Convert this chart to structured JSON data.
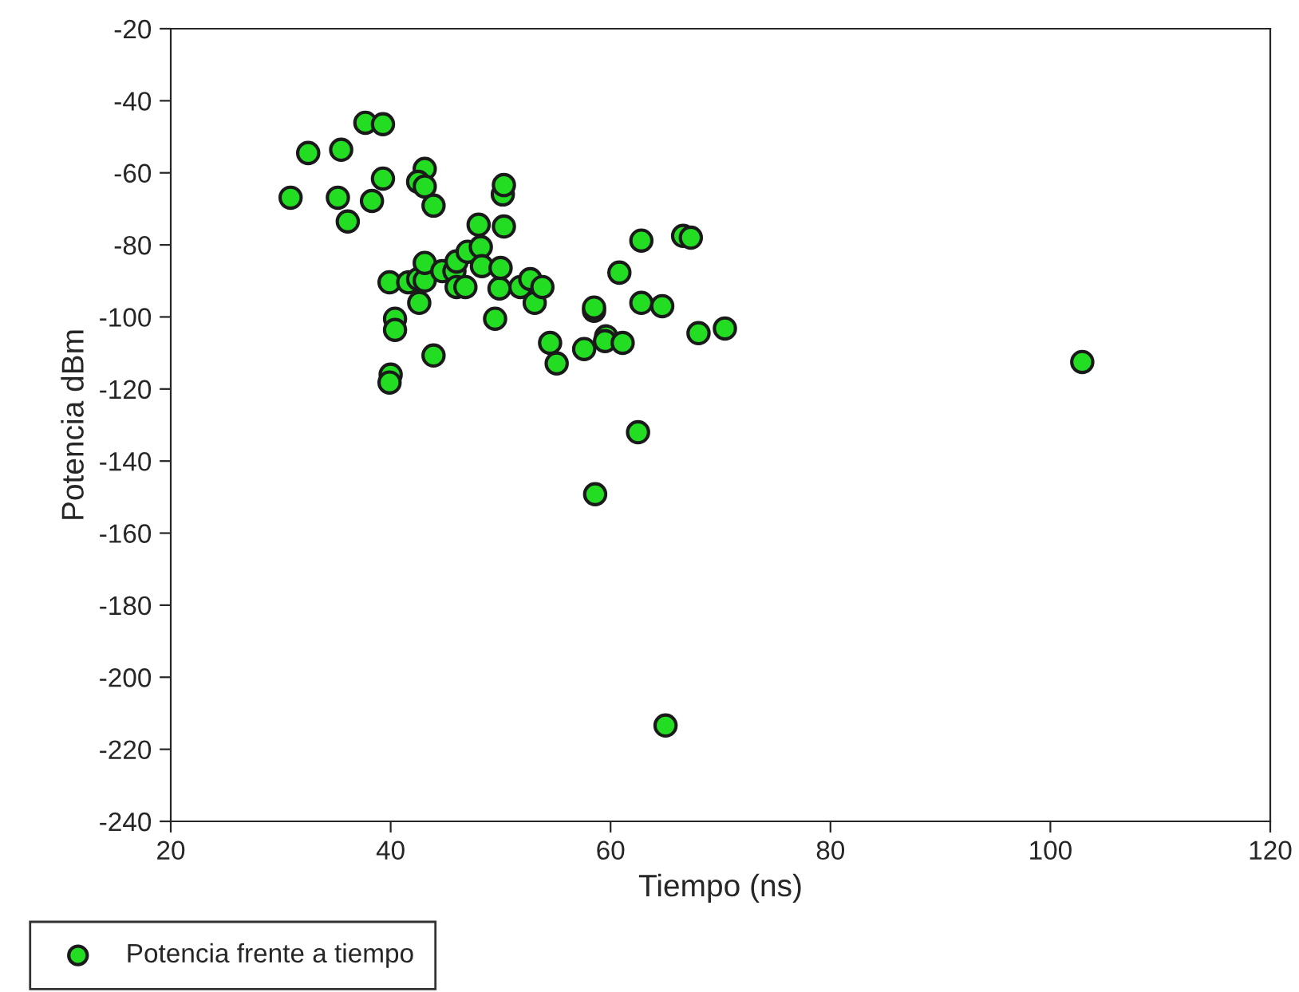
{
  "chart_data": {
    "type": "scatter",
    "xlabel": "Tiempo (ns)",
    "ylabel": "Potencia dBm",
    "xlim": [
      20,
      120
    ],
    "xticks": [
      20,
      40,
      60,
      80,
      100,
      120
    ],
    "ylim": [
      -240,
      -20
    ],
    "yticks": [
      -240,
      -220,
      -200,
      -180,
      -160,
      -140,
      -120,
      -100,
      -80,
      -60,
      -40,
      -20
    ],
    "grid": false,
    "legend": "bottom left",
    "marker": "circle",
    "series": [
      {
        "name": "Potencia frente a tiempo",
        "color": "#22dd22",
        "x": [
          30.9,
          32.5,
          37.7,
          39.3,
          35.5,
          35.2,
          36.1,
          38.3,
          39.3,
          43.1,
          42.5,
          43.1,
          43.9,
          39.9,
          40.4,
          40.4,
          40.0,
          39.9,
          43.9,
          41.6,
          42.5,
          42.6,
          43.1,
          43.1,
          44.7,
          45.8,
          46.0,
          46.0,
          46.8,
          47.0,
          48.0,
          48.2,
          48.3,
          49.5,
          49.9,
          50.0,
          50.3,
          50.2,
          50.3,
          51.8,
          52.7,
          53.1,
          53.8,
          54.5,
          55.1,
          57.6,
          58.5,
          58.5,
          58.6,
          59.6,
          59.5,
          60.8,
          61.1,
          62.5,
          62.8,
          62.8,
          64.7,
          65.0,
          66.6,
          67.3,
          68.0,
          70.4,
          102.9
        ],
        "values": [
          -66.9,
          -54.5,
          -46.1,
          -46.5,
          -53.6,
          -66.9,
          -73.5,
          -67.8,
          -61.6,
          -58.9,
          -62.5,
          -63.8,
          -69.1,
          -90.4,
          -100.5,
          -103.6,
          -116,
          -118.2,
          -110.7,
          -90.4,
          -89.5,
          -96.1,
          -89.9,
          -85,
          -87.3,
          -87.3,
          -84.6,
          -91.7,
          -91.7,
          -81.9,
          -74.4,
          -80.6,
          -85.9,
          -100.5,
          -92.1,
          -86.4,
          -74.9,
          -66,
          -63.4,
          -91.7,
          -89.5,
          -96.1,
          -91.7,
          -107.2,
          -112.9,
          -108.9,
          -98.3,
          -97.4,
          -149.2,
          -105.4,
          -106.7,
          -87.7,
          -107.2,
          -132,
          -78.8,
          -96.1,
          -97,
          -213.4,
          -77.5,
          -78,
          -104.5,
          -103.2,
          -112.5
        ]
      }
    ]
  }
}
